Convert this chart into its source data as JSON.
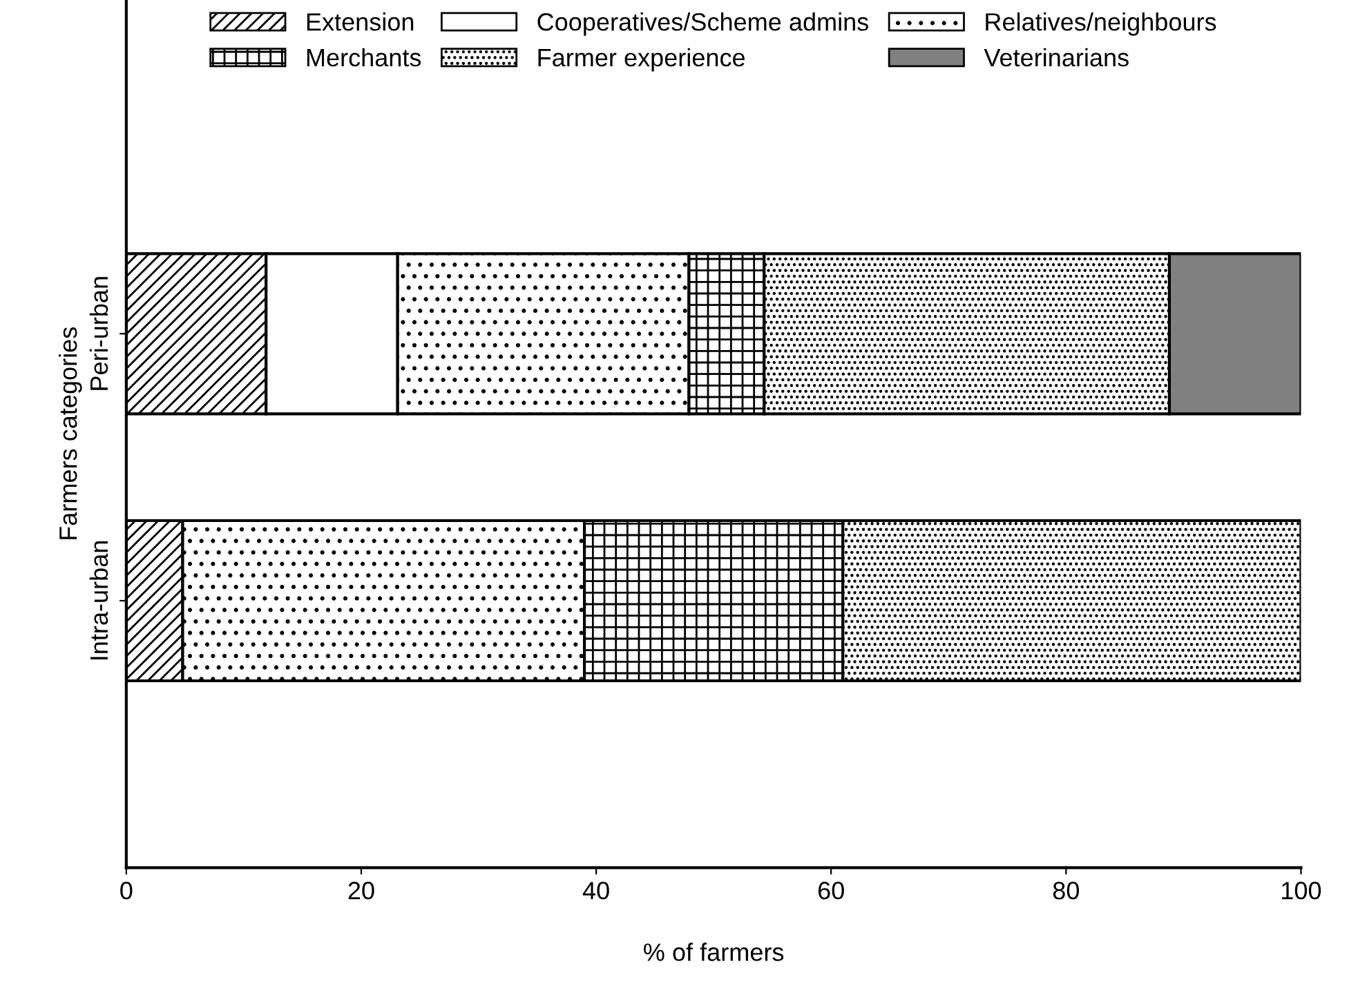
{
  "chart_data": {
    "type": "bar",
    "orientation": "horizontal",
    "stacked": true,
    "xlabel": "% of farmers",
    "ylabel": "Farmers categories",
    "categories": [
      "Peri-urban",
      "Intra-urban"
    ],
    "series": [
      {
        "name": "Extension",
        "color": "#000000",
        "values": [
          11.9,
          4.8
        ]
      },
      {
        "name": "Cooperatives/Scheme admins",
        "color": "#ffffff",
        "values": [
          11.2,
          null
        ]
      },
      {
        "name": "Relatives/neighbours",
        "color": "#000000",
        "values": [
          24.8,
          34.2
        ]
      },
      {
        "name": "Merchants",
        "color": "#000000",
        "values": [
          6.4,
          22.0
        ]
      },
      {
        "name": "Farmer experience",
        "color": "#000000",
        "values": [
          34.5,
          39.0
        ]
      },
      {
        "name": "Veterinarians",
        "color": "#808080",
        "values": [
          11.2,
          null
        ]
      }
    ],
    "xlim": [
      0,
      100
    ],
    "xticks": [
      0,
      20,
      40,
      60,
      80,
      100
    ],
    "grid": false,
    "legend": "top"
  }
}
